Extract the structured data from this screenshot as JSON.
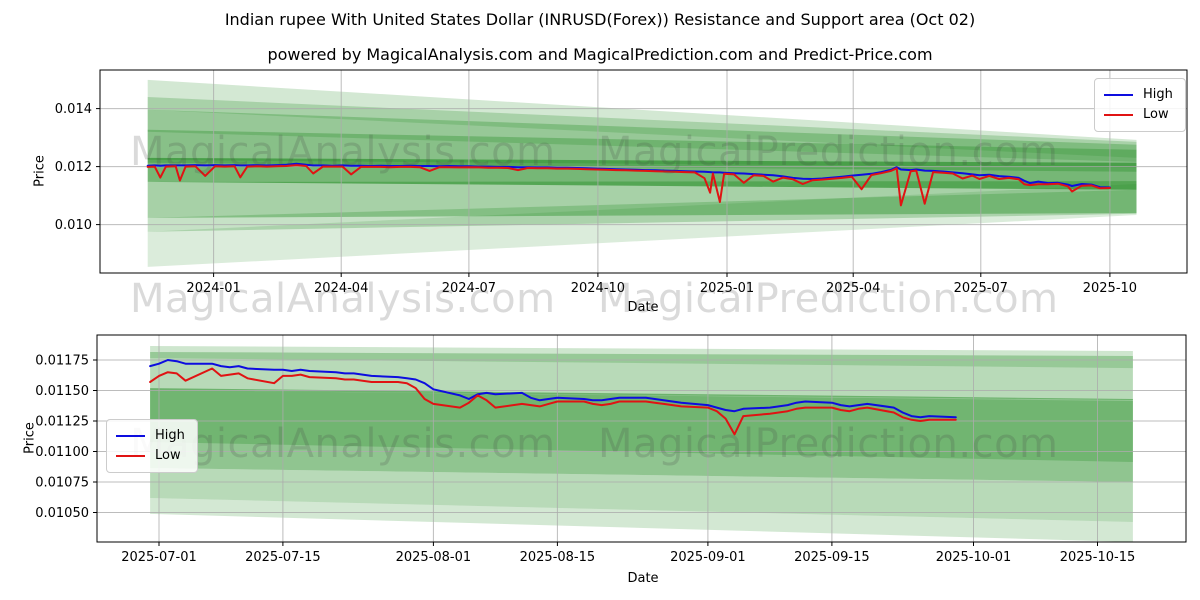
{
  "header": {
    "title": "Indian rupee With United States Dollar (INRUSD(Forex)) Resistance and Support area (Oct 02)",
    "subtitle": "powered by MagicalAnalysis.com and MagicalPrediction.com and Predict-Price.com"
  },
  "legend": {
    "high_label": "High",
    "low_label": "Low"
  },
  "labels": {
    "x": "Date",
    "y": "Price"
  },
  "watermarks": {
    "analysis": "MagicalAnalysis.com",
    "prediction": "MagicalPrediction.com"
  },
  "colors": {
    "high": "#0d0ddf",
    "low": "#e01313",
    "band": "#228B22",
    "grid": "#ababab"
  },
  "chart_data": [
    {
      "type": "line",
      "name": "full-history",
      "xlabel": "Date",
      "ylabel": "Price",
      "legend_position": "upper right",
      "grid": true,
      "xlim": [
        "2023-10-12",
        "2025-11-25"
      ],
      "ylim": [
        0.00833,
        0.01533
      ],
      "xticks": [
        {
          "date": "2024-01-01",
          "label": "2024-01"
        },
        {
          "date": "2024-04-01",
          "label": "2024-04"
        },
        {
          "date": "2024-07-01",
          "label": "2024-07"
        },
        {
          "date": "2024-10-01",
          "label": "2024-10"
        },
        {
          "date": "2025-01-01",
          "label": "2025-01"
        },
        {
          "date": "2025-04-01",
          "label": "2025-04"
        },
        {
          "date": "2025-07-01",
          "label": "2025-07"
        },
        {
          "date": "2025-10-01",
          "label": "2025-10"
        }
      ],
      "yticks": [
        {
          "value": 0.014,
          "label": "0.014"
        },
        {
          "value": 0.012,
          "label": "0.012"
        },
        {
          "value": 0.01,
          "label": "0.010"
        }
      ],
      "x": [
        "2023-11-15",
        "2023-11-20",
        "2023-11-24",
        "2023-11-28",
        "2023-12-05",
        "2023-12-08",
        "2023-12-12",
        "2023-12-19",
        "2023-12-26",
        "2024-01-02",
        "2024-01-09",
        "2024-01-16",
        "2024-01-20",
        "2024-01-25",
        "2024-02-01",
        "2024-02-08",
        "2024-02-15",
        "2024-02-22",
        "2024-02-29",
        "2024-03-07",
        "2024-03-12",
        "2024-03-19",
        "2024-03-26",
        "2024-04-02",
        "2024-04-08",
        "2024-04-15",
        "2024-04-22",
        "2024-04-29",
        "2024-05-06",
        "2024-05-13",
        "2024-05-20",
        "2024-05-27",
        "2024-06-03",
        "2024-06-10",
        "2024-06-17",
        "2024-06-24",
        "2024-07-01",
        "2024-07-08",
        "2024-07-15",
        "2024-07-22",
        "2024-07-29",
        "2024-08-05",
        "2024-08-12",
        "2024-08-19",
        "2024-08-26",
        "2024-09-02",
        "2024-09-09",
        "2024-09-16",
        "2024-09-23",
        "2024-09-30",
        "2024-10-07",
        "2024-10-14",
        "2024-10-21",
        "2024-10-28",
        "2024-11-04",
        "2024-11-11",
        "2024-11-18",
        "2024-11-25",
        "2024-12-02",
        "2024-12-09",
        "2024-12-16",
        "2024-12-20",
        "2024-12-22",
        "2024-12-27",
        "2024-12-30",
        "2025-01-06",
        "2025-01-13",
        "2025-01-20",
        "2025-01-27",
        "2025-02-03",
        "2025-02-10",
        "2025-02-17",
        "2025-02-24",
        "2025-03-03",
        "2025-03-10",
        "2025-03-17",
        "2025-03-24",
        "2025-03-31",
        "2025-04-07",
        "2025-04-14",
        "2025-04-21",
        "2025-04-28",
        "2025-05-02",
        "2025-05-05",
        "2025-05-12",
        "2025-05-16",
        "2025-05-22",
        "2025-05-28",
        "2025-06-04",
        "2025-06-11",
        "2025-06-18",
        "2025-06-25",
        "2025-06-30",
        "2025-07-07",
        "2025-07-14",
        "2025-07-21",
        "2025-07-28",
        "2025-08-01",
        "2025-08-05",
        "2025-08-11",
        "2025-08-18",
        "2025-08-25",
        "2025-09-01",
        "2025-09-04",
        "2025-09-11",
        "2025-09-18",
        "2025-09-24",
        "2025-10-01"
      ],
      "series": [
        {
          "name": "High",
          "color": "#0d0ddf",
          "values": [
            0.01203,
            0.01204,
            0.01203,
            0.01204,
            0.01204,
            0.01204,
            0.01204,
            0.01205,
            0.01204,
            0.01205,
            0.01204,
            0.01205,
            0.01204,
            0.01204,
            0.01205,
            0.01204,
            0.01205,
            0.01206,
            0.0121,
            0.01206,
            0.01204,
            0.01204,
            0.01203,
            0.01204,
            0.01203,
            0.01203,
            0.01202,
            0.01203,
            0.01202,
            0.01202,
            0.01203,
            0.01202,
            0.01202,
            0.01201,
            0.01202,
            0.01201,
            0.01201,
            0.012,
            0.012,
            0.01199,
            0.01199,
            0.01198,
            0.01198,
            0.01197,
            0.01197,
            0.01196,
            0.01196,
            0.01195,
            0.01194,
            0.01193,
            0.01192,
            0.01191,
            0.0119,
            0.01189,
            0.01188,
            0.01187,
            0.01186,
            0.01185,
            0.01184,
            0.01183,
            0.01182,
            0.01181,
            0.0118,
            0.0118,
            0.01179,
            0.01177,
            0.01176,
            0.01174,
            0.01172,
            0.0117,
            0.01166,
            0.01161,
            0.01158,
            0.01157,
            0.01159,
            0.01162,
            0.01165,
            0.01169,
            0.01172,
            0.01175,
            0.01181,
            0.01189,
            0.01198,
            0.0119,
            0.01188,
            0.0119,
            0.01186,
            0.01185,
            0.01183,
            0.0118,
            0.01177,
            0.01173,
            0.0117,
            0.01172,
            0.01167,
            0.01165,
            0.01161,
            0.01151,
            0.01143,
            0.01148,
            0.01143,
            0.01144,
            0.01138,
            0.01133,
            0.0114,
            0.01138,
            0.01129,
            0.01128
          ]
        },
        {
          "name": "Low",
          "color": "#e01313",
          "values": [
            0.01199,
            0.012,
            0.01162,
            0.012,
            0.01201,
            0.01152,
            0.012,
            0.01201,
            0.01168,
            0.01201,
            0.012,
            0.01201,
            0.01163,
            0.012,
            0.01201,
            0.012,
            0.01201,
            0.01202,
            0.01205,
            0.01202,
            0.01176,
            0.012,
            0.012,
            0.012,
            0.01173,
            0.01199,
            0.01199,
            0.01199,
            0.01198,
            0.01199,
            0.01199,
            0.01198,
            0.01185,
            0.01198,
            0.01198,
            0.01197,
            0.01198,
            0.01197,
            0.01196,
            0.01196,
            0.01195,
            0.01188,
            0.01195,
            0.01194,
            0.01194,
            0.01193,
            0.01193,
            0.01192,
            0.01191,
            0.0119,
            0.01189,
            0.01188,
            0.01187,
            0.01186,
            0.01185,
            0.01184,
            0.01183,
            0.01182,
            0.01181,
            0.0118,
            0.0116,
            0.0111,
            0.01176,
            0.01078,
            0.01175,
            0.01173,
            0.01144,
            0.0117,
            0.01168,
            0.01148,
            0.01162,
            0.01156,
            0.0114,
            0.01153,
            0.01155,
            0.01158,
            0.01161,
            0.01165,
            0.01122,
            0.01171,
            0.01177,
            0.01185,
            0.01194,
            0.01066,
            0.01184,
            0.01186,
            0.01072,
            0.01181,
            0.01179,
            0.01176,
            0.01159,
            0.01169,
            0.01157,
            0.01168,
            0.01157,
            0.01161,
            0.01156,
            0.01139,
            0.01136,
            0.01139,
            0.01139,
            0.01141,
            0.01132,
            0.01114,
            0.01134,
            0.01135,
            0.01125,
            0.01126
          ]
        }
      ],
      "bands": [
        {
          "x": [
            "2023-11-15",
            "2025-10-20"
          ],
          "top": [
            0.01499,
            0.01292
          ],
          "bottom": [
            0.01396,
            0.0123
          ],
          "alpha": 0.2
        },
        {
          "x": [
            "2023-11-15",
            "2025-10-20"
          ],
          "top": [
            0.0144,
            0.01285
          ],
          "bottom": [
            0.0132,
            0.01216
          ],
          "alpha": 0.24
        },
        {
          "x": [
            "2023-11-15",
            "2025-10-20"
          ],
          "top": [
            0.01396,
            0.01275
          ],
          "bottom": [
            0.01223,
            0.01196
          ],
          "alpha": 0.3
        },
        {
          "x": [
            "2023-11-15",
            "2025-10-20"
          ],
          "top": [
            0.01327,
            0.01258
          ],
          "bottom": [
            0.01213,
            0.01182
          ],
          "alpha": 0.34
        },
        {
          "x": [
            "2023-11-15",
            "2025-10-20"
          ],
          "top": [
            0.0123,
            0.01213
          ],
          "bottom": [
            0.01147,
            0.0112
          ],
          "alpha": 0.62
        },
        {
          "x": [
            "2023-11-15",
            "2025-10-20"
          ],
          "top": [
            0.01147,
            0.0115
          ],
          "bottom": [
            0.01023,
            0.0104
          ],
          "alpha": 0.4
        },
        {
          "x": [
            "2023-11-15",
            "2025-10-20"
          ],
          "top": [
            0.01023,
            0.0112
          ],
          "bottom": [
            0.00975,
            0.01037
          ],
          "alpha": 0.26
        },
        {
          "x": [
            "2023-11-15",
            "2025-10-20"
          ],
          "top": [
            0.00975,
            0.0114
          ],
          "bottom": [
            0.00854,
            0.01033
          ],
          "alpha": 0.16
        }
      ]
    },
    {
      "type": "line",
      "name": "recent-detail",
      "xlabel": "Date",
      "ylabel": "Price",
      "legend_position": "center left",
      "grid": true,
      "xlim": [
        "2025-06-24",
        "2025-10-25"
      ],
      "ylim": [
        0.010258,
        0.011955
      ],
      "xticks": [
        {
          "date": "2025-07-01",
          "label": "2025-07-01"
        },
        {
          "date": "2025-07-15",
          "label": "2025-07-15"
        },
        {
          "date": "2025-08-01",
          "label": "2025-08-01"
        },
        {
          "date": "2025-08-15",
          "label": "2025-08-15"
        },
        {
          "date": "2025-09-01",
          "label": "2025-09-01"
        },
        {
          "date": "2025-09-15",
          "label": "2025-09-15"
        },
        {
          "date": "2025-10-01",
          "label": "2025-10-01"
        },
        {
          "date": "2025-10-15",
          "label": "2025-10-15"
        }
      ],
      "yticks": [
        {
          "value": 0.01175,
          "label": "0.01175"
        },
        {
          "value": 0.0115,
          "label": "0.01150"
        },
        {
          "value": 0.01125,
          "label": "0.01125"
        },
        {
          "value": 0.011,
          "label": "0.01100"
        },
        {
          "value": 0.01075,
          "label": "0.01075"
        },
        {
          "value": 0.0105,
          "label": "0.01050"
        }
      ],
      "x": [
        "2025-06-30",
        "2025-07-01",
        "2025-07-02",
        "2025-07-03",
        "2025-07-04",
        "2025-07-07",
        "2025-07-08",
        "2025-07-09",
        "2025-07-10",
        "2025-07-11",
        "2025-07-14",
        "2025-07-15",
        "2025-07-16",
        "2025-07-17",
        "2025-07-18",
        "2025-07-21",
        "2025-07-22",
        "2025-07-23",
        "2025-07-24",
        "2025-07-25",
        "2025-07-28",
        "2025-07-29",
        "2025-07-30",
        "2025-07-31",
        "2025-08-01",
        "2025-08-04",
        "2025-08-05",
        "2025-08-06",
        "2025-08-07",
        "2025-08-08",
        "2025-08-11",
        "2025-08-12",
        "2025-08-13",
        "2025-08-14",
        "2025-08-15",
        "2025-08-18",
        "2025-08-19",
        "2025-08-20",
        "2025-08-21",
        "2025-08-22",
        "2025-08-25",
        "2025-08-26",
        "2025-08-27",
        "2025-08-28",
        "2025-08-29",
        "2025-09-01",
        "2025-09-02",
        "2025-09-03",
        "2025-09-04",
        "2025-09-05",
        "2025-09-08",
        "2025-09-09",
        "2025-09-10",
        "2025-09-11",
        "2025-09-12",
        "2025-09-15",
        "2025-09-16",
        "2025-09-17",
        "2025-09-18",
        "2025-09-19",
        "2025-09-22",
        "2025-09-23",
        "2025-09-24",
        "2025-09-25",
        "2025-09-26",
        "2025-09-29"
      ],
      "series": [
        {
          "name": "High",
          "color": "#0d0ddf",
          "values": [
            0.0117,
            0.01172,
            0.01175,
            0.01174,
            0.01172,
            0.01172,
            0.0117,
            0.01169,
            0.0117,
            0.01168,
            0.01167,
            0.01167,
            0.01166,
            0.01167,
            0.01166,
            0.01165,
            0.01164,
            0.01164,
            0.01163,
            0.01162,
            0.01161,
            0.0116,
            0.01159,
            0.01156,
            0.01151,
            0.01146,
            0.01143,
            0.01147,
            0.01148,
            0.01147,
            0.01148,
            0.01144,
            0.01142,
            0.01143,
            0.01144,
            0.01143,
            0.01142,
            0.01142,
            0.01143,
            0.01144,
            0.01144,
            0.01143,
            0.01142,
            0.01141,
            0.0114,
            0.01138,
            0.01136,
            0.01134,
            0.01133,
            0.01135,
            0.01136,
            0.01137,
            0.01138,
            0.0114,
            0.01141,
            0.0114,
            0.01138,
            0.01137,
            0.01138,
            0.01139,
            0.01136,
            0.01132,
            0.01129,
            0.01128,
            0.01129,
            0.01128
          ]
        },
        {
          "name": "Low",
          "color": "#e01313",
          "values": [
            0.01157,
            0.01162,
            0.01165,
            0.01164,
            0.01158,
            0.01168,
            0.01162,
            0.01163,
            0.01164,
            0.0116,
            0.01156,
            0.01162,
            0.01162,
            0.01163,
            0.01161,
            0.0116,
            0.01159,
            0.01159,
            0.01158,
            0.01157,
            0.01157,
            0.01156,
            0.01152,
            0.01143,
            0.01139,
            0.01136,
            0.0114,
            0.01146,
            0.01142,
            0.01136,
            0.01139,
            0.01138,
            0.01137,
            0.01139,
            0.01141,
            0.01141,
            0.01139,
            0.01138,
            0.01139,
            0.01141,
            0.01141,
            0.0114,
            0.01139,
            0.01138,
            0.01137,
            0.01136,
            0.01133,
            0.01127,
            0.01114,
            0.01129,
            0.01131,
            0.01132,
            0.01133,
            0.01135,
            0.01136,
            0.01136,
            0.01134,
            0.01133,
            0.01135,
            0.01136,
            0.01132,
            0.01128,
            0.01126,
            0.01125,
            0.01126,
            0.01126
          ]
        }
      ],
      "bands": [
        {
          "x": [
            "2025-06-30",
            "2025-10-19"
          ],
          "top": [
            0.011865,
            0.011824
          ],
          "bottom": [
            0.011766,
            0.011684
          ],
          "alpha": 0.22
        },
        {
          "x": [
            "2025-06-30",
            "2025-10-19"
          ],
          "top": [
            0.011816,
            0.011783
          ],
          "bottom": [
            0.011504,
            0.011422
          ],
          "alpha": 0.32
        },
        {
          "x": [
            "2025-06-30",
            "2025-10-19"
          ],
          "top": [
            0.01152,
            0.01143
          ],
          "bottom": [
            0.010865,
            0.01075
          ],
          "alpha": 0.5
        },
        {
          "x": [
            "2025-06-30",
            "2025-10-19"
          ],
          "top": [
            0.011504,
            0.011414
          ],
          "bottom": [
            0.011078,
            0.010914
          ],
          "alpha": 0.28
        },
        {
          "x": [
            "2025-06-30",
            "2025-10-19"
          ],
          "top": [
            0.010865,
            0.01075
          ],
          "bottom": [
            0.010619,
            0.010422
          ],
          "alpha": 0.32
        },
        {
          "x": [
            "2025-06-30",
            "2025-10-19"
          ],
          "top": [
            0.010619,
            0.010422
          ],
          "bottom": [
            0.010488,
            0.010258
          ],
          "alpha": 0.2
        }
      ]
    }
  ]
}
